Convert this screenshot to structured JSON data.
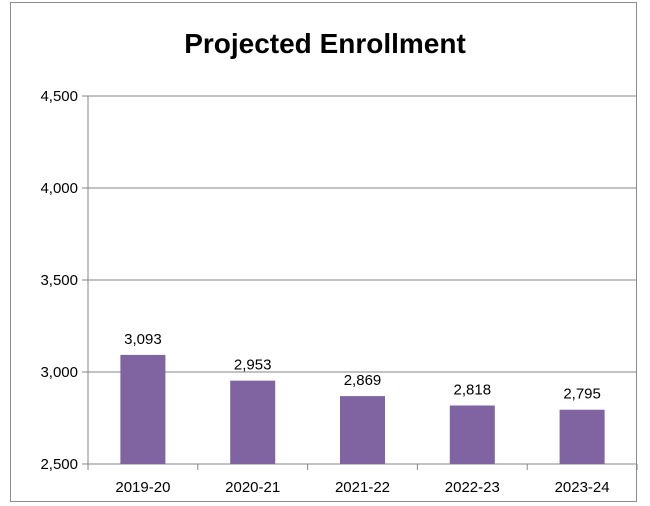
{
  "chart_data": {
    "type": "bar",
    "title": "Projected Enrollment",
    "xlabel": "",
    "ylabel": "",
    "categories": [
      "2019-20",
      "2020-21",
      "2021-22",
      "2022-23",
      "2023-24"
    ],
    "values": [
      3093,
      2953,
      2869,
      2818,
      2795
    ],
    "data_labels": [
      "3,093",
      "2,953",
      "2,869",
      "2,818",
      "2,795"
    ],
    "ylim": [
      2500,
      4500
    ],
    "yticks": [
      2500,
      3000,
      3500,
      4000,
      4500
    ],
    "ytick_labels": [
      "2,500",
      "3,000",
      "3,500",
      "4,000",
      "4,500"
    ],
    "grid": true,
    "legend": "none",
    "bar_color": "#8064a2",
    "grid_color": "#868686"
  }
}
